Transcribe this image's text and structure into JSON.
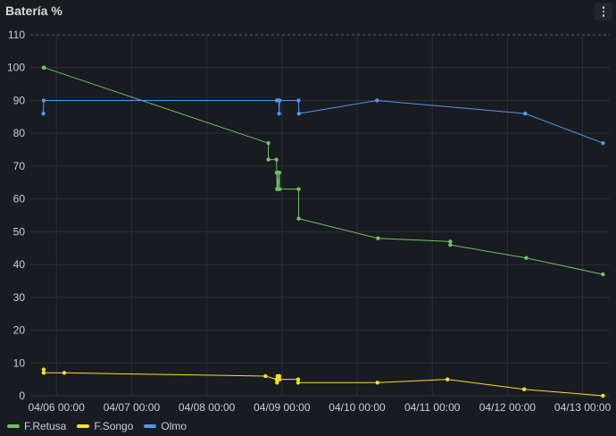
{
  "panel": {
    "title": "Batería %"
  },
  "chart_data": {
    "type": "line",
    "title": "Batería %",
    "xlabel": "",
    "ylabel": "",
    "ylim": [
      0,
      110
    ],
    "yticks": [
      0,
      10,
      20,
      30,
      40,
      50,
      60,
      70,
      80,
      90,
      100,
      110
    ],
    "xlim": [
      "2026-04-05T15:40",
      "2026-04-13T08:40"
    ],
    "xticks": [
      {
        "value": "2026-04-06T00:00",
        "label": "04/06 00:00"
      },
      {
        "value": "2026-04-07T00:00",
        "label": "04/07 00:00"
      },
      {
        "value": "2026-04-08T00:00",
        "label": "04/08 00:00"
      },
      {
        "value": "2026-04-09T00:00",
        "label": "04/09 00:00"
      },
      {
        "value": "2026-04-10T00:00",
        "label": "04/10 00:00"
      },
      {
        "value": "2026-04-11T00:00",
        "label": "04/11 00:00"
      },
      {
        "value": "2026-04-12T00:00",
        "label": "04/12 00:00"
      },
      {
        "value": "2026-04-13T00:00",
        "label": "04/13 00:00"
      }
    ],
    "grid": true,
    "legend": "bottom-left",
    "series": [
      {
        "name": "F.Retusa",
        "color": "#73bf69",
        "points": [
          [
            "2026-04-05T19:55",
            100
          ],
          [
            "2026-04-05T20:05",
            100
          ],
          [
            "2026-04-08T19:40",
            77
          ],
          [
            "2026-04-08T19:40",
            72
          ],
          [
            "2026-04-08T22:15",
            72
          ],
          [
            "2026-04-08T22:20",
            68
          ],
          [
            "2026-04-08T22:25",
            63
          ],
          [
            "2026-04-08T22:35",
            68
          ],
          [
            "2026-04-08T22:45",
            63
          ],
          [
            "2026-04-08T23:10",
            68
          ],
          [
            "2026-04-08T23:15",
            63
          ],
          [
            "2026-04-09T05:20",
            63
          ],
          [
            "2026-04-09T05:20",
            54
          ],
          [
            "2026-04-10T06:40",
            48
          ],
          [
            "2026-04-11T05:45",
            47
          ],
          [
            "2026-04-11T05:45",
            46
          ],
          [
            "2026-04-12T06:00",
            42
          ],
          [
            "2026-04-13T06:30",
            37
          ]
        ]
      },
      {
        "name": "F.Songo",
        "color": "#fade2a",
        "points": [
          [
            "2026-04-05T19:55",
            8
          ],
          [
            "2026-04-05T19:55",
            7
          ],
          [
            "2026-04-06T02:30",
            7
          ],
          [
            "2026-04-08T18:45",
            6
          ],
          [
            "2026-04-08T22:20",
            5
          ],
          [
            "2026-04-08T22:25",
            4
          ],
          [
            "2026-04-08T22:35",
            6
          ],
          [
            "2026-04-08T22:45",
            5
          ],
          [
            "2026-04-08T23:10",
            6
          ],
          [
            "2026-04-08T23:15",
            5
          ],
          [
            "2026-04-09T05:10",
            5
          ],
          [
            "2026-04-09T05:10",
            4
          ],
          [
            "2026-04-10T06:30",
            4
          ],
          [
            "2026-04-11T04:50",
            5
          ],
          [
            "2026-04-12T05:20",
            2
          ],
          [
            "2026-04-13T06:30",
            0
          ]
        ]
      },
      {
        "name": "Olmo",
        "color": "#5794f2",
        "points": [
          [
            "2026-04-05T19:50",
            86
          ],
          [
            "2026-04-05T19:55",
            90
          ],
          [
            "2026-04-08T22:20",
            90
          ],
          [
            "2026-04-08T22:40",
            90
          ],
          [
            "2026-04-08T23:00",
            90
          ],
          [
            "2026-04-08T23:05",
            86
          ],
          [
            "2026-04-08T23:15",
            90
          ],
          [
            "2026-04-09T05:20",
            90
          ],
          [
            "2026-04-09T05:25",
            86
          ],
          [
            "2026-04-10T06:20",
            90
          ],
          [
            "2026-04-12T05:40",
            86
          ],
          [
            "2026-04-13T06:30",
            77
          ]
        ]
      }
    ]
  }
}
